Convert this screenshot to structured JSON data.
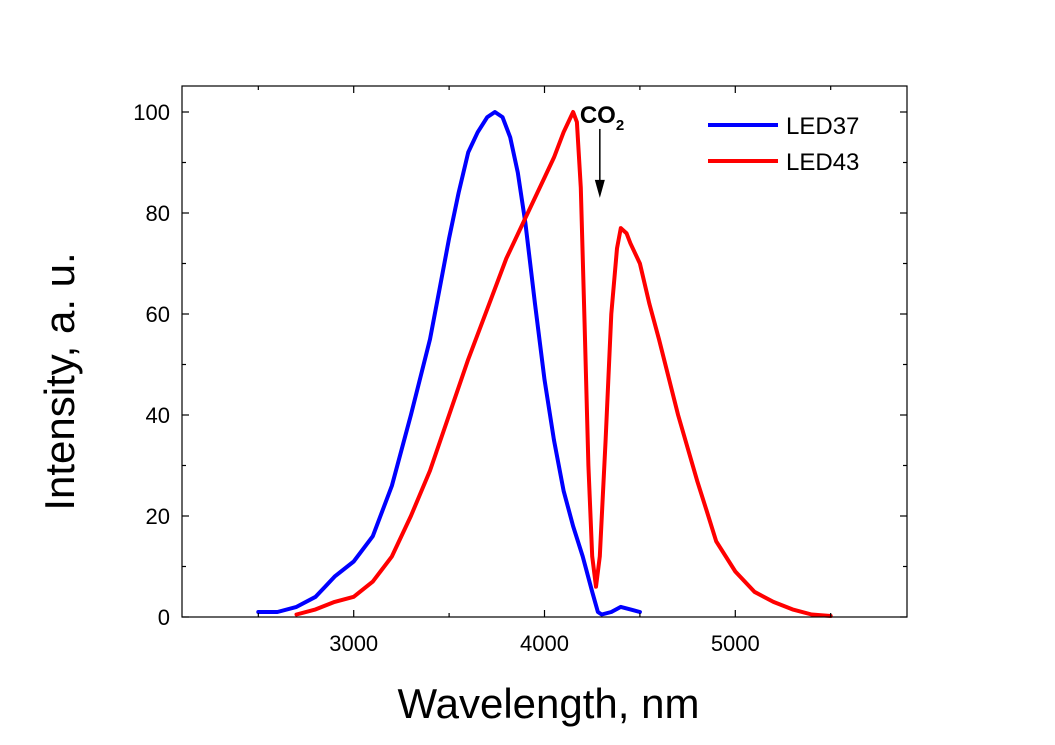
{
  "chart_data": {
    "type": "line",
    "xlabel": "Wavelength, nm",
    "ylabel": "Intensity, a. u.",
    "xlim": [
      2100,
      5900
    ],
    "ylim": [
      0,
      100
    ],
    "x_ticks": [
      3000,
      4000,
      5000
    ],
    "y_ticks": [
      0,
      20,
      40,
      60,
      80,
      100
    ],
    "grid": false,
    "legend_position": "top-right",
    "series": [
      {
        "name": "LED37",
        "color": "#0000ff",
        "points": [
          [
            2500,
            1
          ],
          [
            2600,
            1
          ],
          [
            2700,
            2
          ],
          [
            2800,
            4
          ],
          [
            2850,
            6
          ],
          [
            2900,
            8
          ],
          [
            3000,
            11
          ],
          [
            3100,
            16
          ],
          [
            3200,
            26
          ],
          [
            3300,
            40
          ],
          [
            3400,
            55
          ],
          [
            3450,
            65
          ],
          [
            3500,
            75
          ],
          [
            3550,
            84
          ],
          [
            3600,
            92
          ],
          [
            3650,
            96
          ],
          [
            3700,
            99
          ],
          [
            3740,
            100
          ],
          [
            3780,
            99
          ],
          [
            3820,
            95
          ],
          [
            3860,
            88
          ],
          [
            3900,
            78
          ],
          [
            3950,
            62
          ],
          [
            4000,
            47
          ],
          [
            4050,
            35
          ],
          [
            4100,
            25
          ],
          [
            4150,
            18
          ],
          [
            4200,
            12
          ],
          [
            4250,
            5
          ],
          [
            4280,
            1
          ],
          [
            4300,
            0.5
          ],
          [
            4350,
            1
          ],
          [
            4400,
            2
          ],
          [
            4450,
            1.5
          ],
          [
            4500,
            1
          ]
        ]
      },
      {
        "name": "LED43",
        "color": "#ff0000",
        "points": [
          [
            2700,
            0.5
          ],
          [
            2800,
            1.5
          ],
          [
            2900,
            3
          ],
          [
            3000,
            4
          ],
          [
            3100,
            7
          ],
          [
            3200,
            12
          ],
          [
            3300,
            20
          ],
          [
            3400,
            29
          ],
          [
            3500,
            40
          ],
          [
            3600,
            51
          ],
          [
            3700,
            61
          ],
          [
            3800,
            71
          ],
          [
            3900,
            79
          ],
          [
            4000,
            87
          ],
          [
            4050,
            91
          ],
          [
            4100,
            96
          ],
          [
            4150,
            100
          ],
          [
            4170,
            98
          ],
          [
            4190,
            85
          ],
          [
            4210,
            58
          ],
          [
            4230,
            30
          ],
          [
            4250,
            12
          ],
          [
            4270,
            6
          ],
          [
            4290,
            12
          ],
          [
            4320,
            35
          ],
          [
            4350,
            60
          ],
          [
            4380,
            73
          ],
          [
            4400,
            77
          ],
          [
            4430,
            76
          ],
          [
            4450,
            74
          ],
          [
            4500,
            70
          ],
          [
            4550,
            62
          ],
          [
            4600,
            55
          ],
          [
            4700,
            40
          ],
          [
            4800,
            27
          ],
          [
            4850,
            21
          ],
          [
            4900,
            15
          ],
          [
            5000,
            9
          ],
          [
            5100,
            5
          ],
          [
            5200,
            3
          ],
          [
            5300,
            1.5
          ],
          [
            5400,
            0.5
          ],
          [
            5500,
            0.2
          ]
        ]
      }
    ],
    "annotations": [
      {
        "text": "CO",
        "subscript": "2",
        "x": 4290,
        "y": 101,
        "arrow_to_y": 83
      }
    ]
  },
  "colors": {
    "axis": "#000000",
    "background": "#ffffff"
  }
}
